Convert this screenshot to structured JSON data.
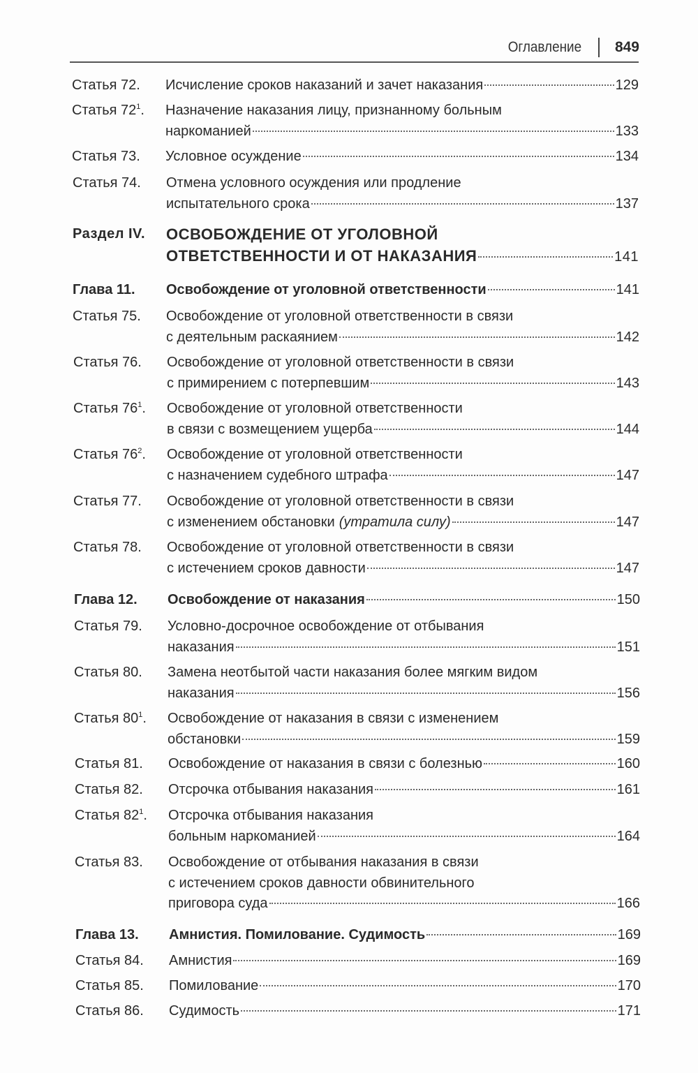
{
  "header": {
    "title": "Оглавление",
    "page_number": "849"
  },
  "entries": [
    {
      "type": "article",
      "label": "Статья 72",
      "sup": "",
      "lines": [
        "Исчисление сроков наказаний и зачет наказания"
      ],
      "page": "129"
    },
    {
      "type": "article",
      "label": "Статья 72",
      "sup": "1",
      "lines": [
        "Назначение наказания лицу, признанному больным",
        "наркоманией"
      ],
      "page": "133"
    },
    {
      "type": "article",
      "label": "Статья 73",
      "sup": "",
      "lines": [
        "Условное осуждение"
      ],
      "page": "134"
    },
    {
      "type": "article",
      "label": "Статья 74",
      "sup": "",
      "lines": [
        "Отмена условного осуждения или продление",
        "испытательного срока"
      ],
      "page": "137"
    },
    {
      "type": "section",
      "label": "Раздел IV",
      "sup": "",
      "lines": [
        "ОСВОБОЖДЕНИЕ ОТ УГОЛОВНОЙ",
        "ОТВЕТСТВЕННОСТИ И ОТ НАКАЗАНИЯ"
      ],
      "page": "141"
    },
    {
      "type": "chapter",
      "label": "Глава 11",
      "sup": "",
      "lines": [
        "Освобождение от уголовной ответственности"
      ],
      "page": "141"
    },
    {
      "type": "article",
      "label": "Статья 75",
      "sup": "",
      "lines": [
        "Освобождение от уголовной ответственности в связи",
        "с деятельным раскаянием"
      ],
      "page": "142"
    },
    {
      "type": "article",
      "label": "Статья 76",
      "sup": "",
      "lines": [
        "Освобождение от уголовной ответственности в связи",
        "с примирением с потерпевшим"
      ],
      "page": "143"
    },
    {
      "type": "article",
      "label": "Статья 76",
      "sup": "1",
      "lines": [
        "Освобождение от уголовной ответственности",
        "в связи с возмещением ущерба"
      ],
      "page": "144"
    },
    {
      "type": "article",
      "label": "Статья 76",
      "sup": "2",
      "lines": [
        "Освобождение от уголовной ответственности",
        "с назначением судебного штрафа"
      ],
      "page": "147"
    },
    {
      "type": "article",
      "label": "Статья 77",
      "sup": "",
      "lines": [
        "Освобождение от уголовной ответственности в связи",
        "с изменением обстановки"
      ],
      "note": "(утратила силу)",
      "page": "147"
    },
    {
      "type": "article",
      "label": "Статья 78",
      "sup": "",
      "lines": [
        "Освобождение от уголовной ответственности в связи",
        "с истечением сроков давности"
      ],
      "page": "147"
    },
    {
      "type": "chapter",
      "label": "Глава 12",
      "sup": "",
      "lines": [
        "Освобождение от наказания"
      ],
      "page": "150"
    },
    {
      "type": "article",
      "label": "Статья 79",
      "sup": "",
      "lines": [
        "Условно-досрочное освобождение от отбывания",
        "наказания"
      ],
      "page": "151"
    },
    {
      "type": "article",
      "label": "Статья 80",
      "sup": "",
      "lines": [
        "Замена неотбытой части наказания более мягким видом",
        "наказания"
      ],
      "page": "156"
    },
    {
      "type": "article",
      "label": "Статья 80",
      "sup": "1",
      "lines": [
        "Освобождение от наказания в связи с изменением",
        "обстановки"
      ],
      "page": "159"
    },
    {
      "type": "article",
      "label": "Статья 81",
      "sup": "",
      "lines": [
        "Освобождение от наказания в связи с болезнью"
      ],
      "page": "160"
    },
    {
      "type": "article",
      "label": "Статья 82",
      "sup": "",
      "lines": [
        "Отсрочка отбывания наказания"
      ],
      "page": "161"
    },
    {
      "type": "article",
      "label": "Статья 82",
      "sup": "1",
      "lines": [
        "Отсрочка отбывания наказания",
        "больным наркоманией"
      ],
      "page": "164"
    },
    {
      "type": "article",
      "label": "Статья 83",
      "sup": "",
      "lines": [
        "Освобождение от отбывания наказания в связи",
        "с истечением сроков давности обвинительного",
        "приговора суда"
      ],
      "page": "166"
    },
    {
      "type": "chapter",
      "label": "Глава 13",
      "sup": "",
      "lines": [
        "Амнистия. Помилование. Судимость"
      ],
      "page": "169"
    },
    {
      "type": "article",
      "label": "Статья 84",
      "sup": "",
      "lines": [
        "Амнистия"
      ],
      "page": "169"
    },
    {
      "type": "article",
      "label": "Статья 85",
      "sup": "",
      "lines": [
        "Помилование"
      ],
      "page": "170"
    },
    {
      "type": "article",
      "label": "Статья 86",
      "sup": "",
      "lines": [
        "Судимость"
      ],
      "page": "171"
    }
  ]
}
